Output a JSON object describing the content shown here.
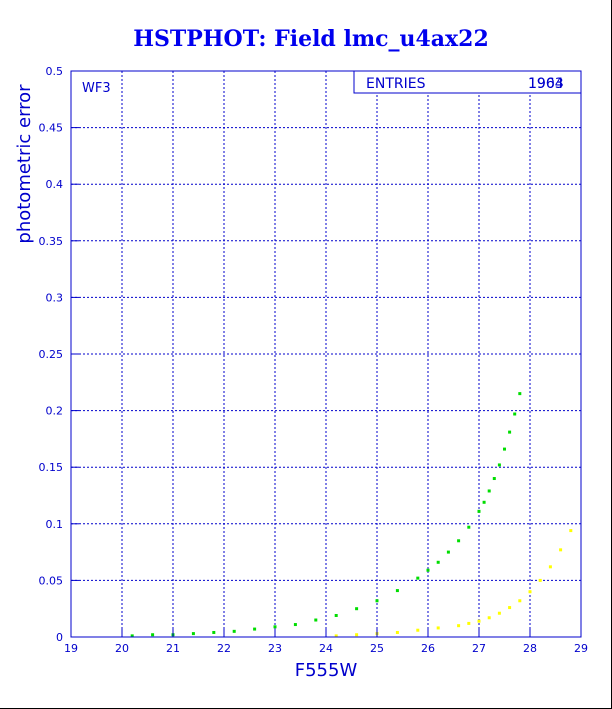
{
  "chart_data": {
    "type": "scatter",
    "title": "HSTPHOT: Field lmc_u4ax22",
    "xlabel": "F555W",
    "ylabel": "photometric error",
    "xlim": [
      19,
      29
    ],
    "ylim": [
      0,
      0.5
    ],
    "xticks": [
      "19",
      "20",
      "21",
      "22",
      "23",
      "24",
      "25",
      "26",
      "27",
      "28",
      "29"
    ],
    "yticks": [
      "0",
      "0.05",
      "0.1",
      "0.15",
      "0.2",
      "0.25",
      "0.3",
      "0.35",
      "0.4",
      "0.45",
      "0.5"
    ],
    "grid": true,
    "panel_label": "WF3",
    "stats_box": {
      "label": "ENTRIES",
      "value_a": "1963",
      "value_b": "1904"
    },
    "colors": {
      "title": "#0000ee",
      "axes": "#0000cc",
      "green_series": "#00dd00",
      "yellow_series": "#ffff00"
    },
    "series": [
      {
        "color": "green",
        "x": [
          20.2,
          20.6,
          21.0,
          21.4,
          21.8,
          22.2,
          22.6,
          23.0,
          23.4,
          23.8,
          24.2,
          24.6,
          25.0,
          25.4,
          25.8,
          26.0,
          26.2,
          26.4,
          26.6,
          26.8,
          27.0,
          27.1,
          27.2,
          27.3,
          27.4,
          27.5,
          27.6,
          27.7,
          27.8
        ],
        "y": [
          0.001,
          0.002,
          0.002,
          0.003,
          0.004,
          0.005,
          0.007,
          0.009,
          0.011,
          0.015,
          0.019,
          0.025,
          0.032,
          0.041,
          0.052,
          0.059,
          0.066,
          0.075,
          0.085,
          0.097,
          0.111,
          0.119,
          0.129,
          0.14,
          0.152,
          0.166,
          0.181,
          0.197,
          0.215
        ]
      },
      {
        "color": "yellow",
        "x": [
          24.2,
          24.6,
          25.0,
          25.4,
          25.8,
          26.2,
          26.6,
          26.8,
          27.0,
          27.2,
          27.4,
          27.6,
          27.8,
          28.0,
          28.2,
          28.4,
          28.6,
          28.8
        ],
        "y": [
          0.001,
          0.002,
          0.003,
          0.004,
          0.006,
          0.008,
          0.01,
          0.012,
          0.014,
          0.017,
          0.021,
          0.026,
          0.032,
          0.04,
          0.05,
          0.062,
          0.077,
          0.094
        ]
      }
    ]
  }
}
